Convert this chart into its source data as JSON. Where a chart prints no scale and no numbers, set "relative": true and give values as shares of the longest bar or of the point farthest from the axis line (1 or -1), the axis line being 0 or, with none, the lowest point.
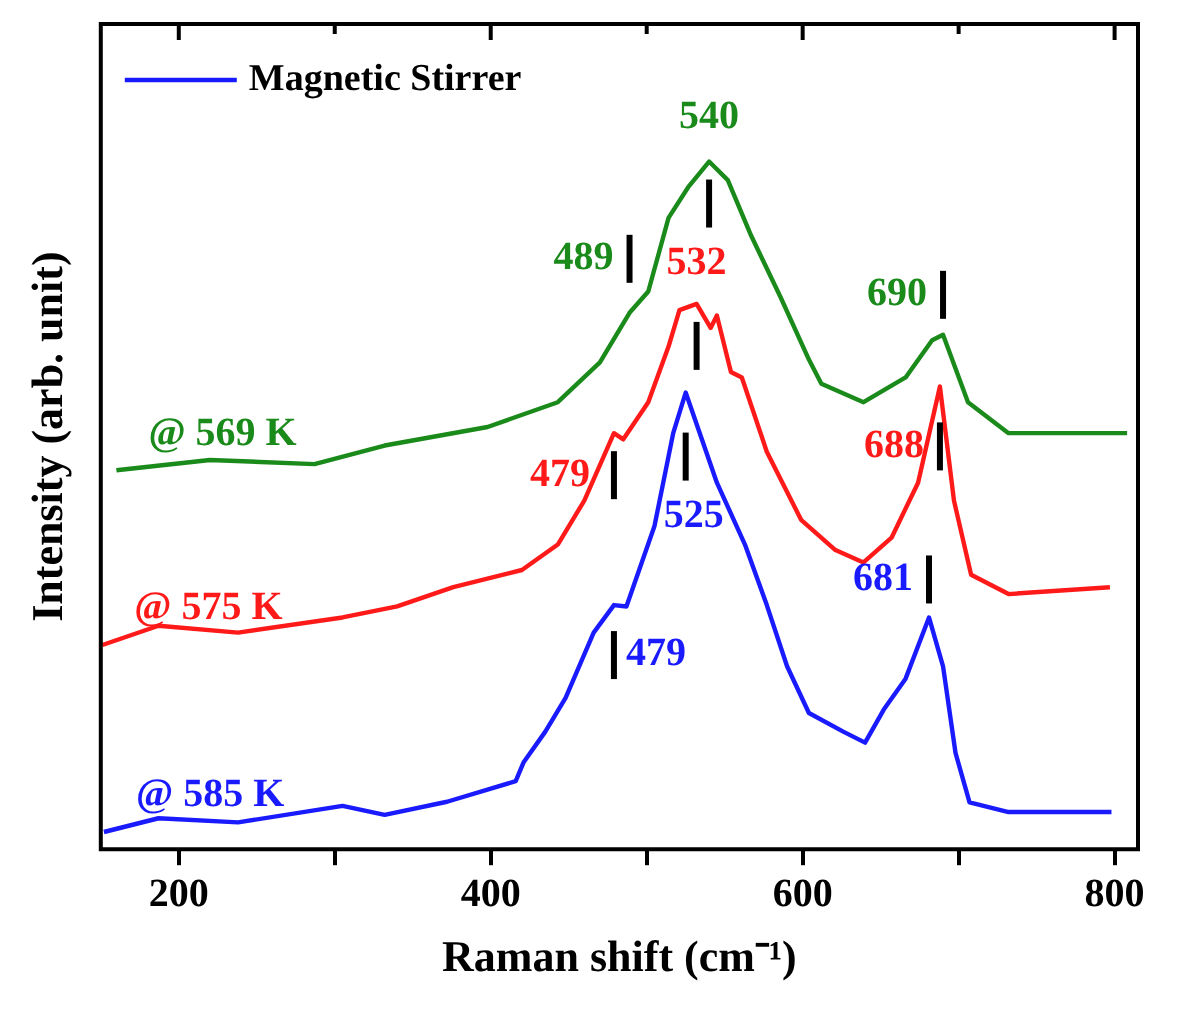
{
  "chart_data": {
    "type": "line",
    "relative": true,
    "xlabel": "Raman shift (cm⁻¹)",
    "ylabel": "Intensity (arb. unit)",
    "xlim": [
      150,
      815
    ],
    "xticks": [
      200,
      {
        "value": 300,
        "label": null
      },
      400,
      {
        "value": 500,
        "label": null
      },
      600,
      {
        "value": 700,
        "label": null
      },
      800
    ],
    "grid": false,
    "legend_title": "Magnetic Stirrer",
    "marker": "none",
    "line_style": "solid",
    "tick_labels": "x",
    "series": [
      {
        "name": "@ 569 K",
        "color": "#1a8a1a",
        "x": [
          160,
          220,
          287,
          332,
          398,
          443,
          470,
          489,
          501,
          514,
          527,
          540,
          552,
          567,
          586,
          604,
          612,
          639,
          666,
          683,
          690,
          706,
          732,
          808
        ],
        "values": [
          0.551,
          0.566,
          0.56,
          0.587,
          0.614,
          0.65,
          0.708,
          0.78,
          0.811,
          0.918,
          0.964,
          1.0,
          0.973,
          0.892,
          0.802,
          0.712,
          0.677,
          0.65,
          0.686,
          0.74,
          0.748,
          0.65,
          0.605,
          0.605
        ]
      },
      {
        "name": "@ 575 K",
        "color": "#ff1a1a",
        "x": [
          151,
          187,
          238,
          305,
          340,
          376,
          420,
          443,
          460,
          479,
          485,
          501,
          514,
          521,
          532,
          541,
          545,
          554,
          561,
          577,
          599,
          621,
          639,
          657,
          674,
          688,
          697,
          708,
          732,
          797
        ],
        "values": [
          0.297,
          0.325,
          0.315,
          0.337,
          0.353,
          0.381,
          0.406,
          0.443,
          0.507,
          0.605,
          0.596,
          0.65,
          0.731,
          0.784,
          0.793,
          0.758,
          0.776,
          0.694,
          0.686,
          0.578,
          0.479,
          0.435,
          0.417,
          0.453,
          0.533,
          0.673,
          0.507,
          0.399,
          0.371,
          0.381
        ]
      },
      {
        "name": "@ 585 K",
        "color": "#1a1aff",
        "x": [
          152,
          187,
          238,
          305,
          332,
          372,
          416,
          421,
          435,
          448,
          466,
          479,
          487,
          505,
          517,
          525,
          545,
          563,
          577,
          590,
          604,
          626,
          640,
          652,
          666,
          681,
          690,
          698,
          707,
          732,
          798
        ],
        "values": [
          0.025,
          0.045,
          0.039,
          0.063,
          0.05,
          0.069,
          0.099,
          0.126,
          0.171,
          0.22,
          0.315,
          0.355,
          0.353,
          0.47,
          0.605,
          0.664,
          0.533,
          0.443,
          0.355,
          0.266,
          0.198,
          0.171,
          0.155,
          0.203,
          0.248,
          0.337,
          0.266,
          0.14,
          0.068,
          0.054,
          0.054
        ]
      }
    ],
    "annotations": [
      {
        "text": "540",
        "x": 540,
        "y": 1.0
      },
      {
        "text": "489",
        "x": 489,
        "y": 0.78
      },
      {
        "text": "690",
        "x": 690,
        "y": 0.748
      },
      {
        "text": "532",
        "x": 532,
        "y": 0.793
      },
      {
        "text": "479",
        "x": 479,
        "y": 0.605
      },
      {
        "text": "688",
        "x": 688,
        "y": 0.673
      },
      {
        "text": "525",
        "x": 525,
        "y": 0.664
      },
      {
        "text": "479",
        "x": 479,
        "y": 0.355
      },
      {
        "text": "681",
        "x": 681,
        "y": 0.337
      }
    ]
  }
}
